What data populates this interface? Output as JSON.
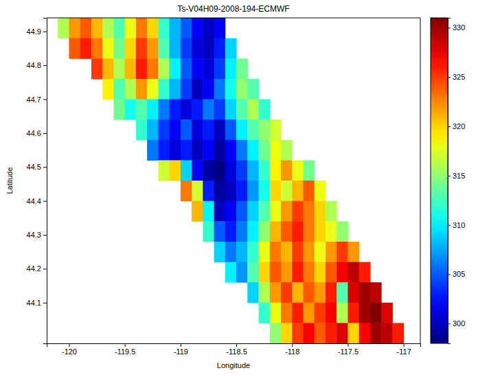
{
  "chart_data": {
    "type": "heatmap",
    "title": "Ts-V04H09-2008-194-ECMWF",
    "x_label": "Longitude",
    "y_label": "Latitude",
    "xlim": [
      -120.2,
      -116.85
    ],
    "ylim": [
      43.98,
      44.94
    ],
    "xticks": [
      -120,
      -119.5,
      -119,
      -118.5,
      -118,
      -117.5,
      -117
    ],
    "yticks": [
      44.1,
      44.2,
      44.3,
      44.4,
      44.5,
      44.6,
      44.7,
      44.8,
      44.9
    ],
    "x": [
      -120.15,
      -120.05,
      -119.95,
      -119.85,
      -119.75,
      -119.65,
      -119.55,
      -119.45,
      -119.35,
      -119.25,
      -119.15,
      -119.05,
      -118.95,
      -118.85,
      -118.75,
      -118.65,
      -118.55,
      -118.45,
      -118.35,
      -118.25,
      -118.15,
      -118.05,
      -117.95,
      -117.85,
      -117.75,
      -117.65,
      -117.55,
      -117.45,
      -117.35,
      -117.25,
      -117.15,
      -117.05,
      -116.95
    ],
    "y": [
      44.91,
      44.85,
      44.79,
      44.73,
      44.67,
      44.61,
      44.55,
      44.49,
      44.43,
      44.37,
      44.31,
      44.25,
      44.19,
      44.13,
      44.07,
      44.01
    ],
    "values": [
      [
        null,
        316,
        322,
        324,
        321,
        316,
        313,
        318,
        323,
        320,
        312,
        308,
        305,
        302,
        300,
        302,
        null,
        null,
        null,
        null,
        null,
        null,
        null,
        null,
        null,
        null,
        null,
        null,
        null,
        null,
        null,
        null,
        null
      ],
      [
        null,
        null,
        324,
        326,
        323,
        318,
        314,
        320,
        325,
        322,
        313,
        308,
        304,
        301,
        300,
        303,
        309,
        null,
        null,
        null,
        null,
        null,
        null,
        null,
        null,
        null,
        null,
        null,
        null,
        null,
        null,
        null,
        null
      ],
      [
        null,
        null,
        null,
        null,
        325,
        321,
        316,
        321,
        326,
        323,
        316,
        310,
        305,
        302,
        301,
        304,
        310,
        314,
        null,
        null,
        null,
        null,
        null,
        null,
        null,
        null,
        null,
        null,
        null,
        null,
        null,
        null,
        null
      ],
      [
        null,
        null,
        null,
        null,
        null,
        319,
        313,
        316,
        322,
        318,
        312,
        308,
        304,
        300,
        302,
        306,
        311,
        315,
        313,
        null,
        null,
        null,
        null,
        null,
        null,
        null,
        null,
        null,
        null,
        null,
        null,
        null,
        null
      ],
      [
        null,
        null,
        null,
        null,
        null,
        null,
        314,
        311,
        313,
        310,
        306,
        303,
        301,
        303,
        306,
        304,
        309,
        313,
        316,
        312,
        null,
        null,
        null,
        null,
        null,
        null,
        null,
        null,
        null,
        null,
        null,
        null,
        null
      ],
      [
        null,
        null,
        null,
        null,
        null,
        null,
        null,
        null,
        312,
        308,
        304,
        302,
        305,
        301,
        303,
        300,
        305,
        310,
        313,
        315,
        317,
        null,
        null,
        null,
        null,
        null,
        null,
        null,
        null,
        null,
        null,
        null,
        null
      ],
      [
        null,
        null,
        null,
        null,
        null,
        null,
        null,
        null,
        null,
        306,
        303,
        301,
        303,
        300,
        302,
        299,
        302,
        306,
        310,
        314,
        318,
        316,
        null,
        null,
        null,
        null,
        null,
        null,
        null,
        null,
        null,
        null,
        null
      ],
      [
        null,
        null,
        null,
        null,
        null,
        null,
        null,
        null,
        null,
        null,
        317,
        320,
        309,
        302,
        299,
        298,
        301,
        304,
        308,
        312,
        319,
        322,
        318,
        314,
        null,
        null,
        null,
        null,
        null,
        null,
        null,
        null,
        null
      ],
      [
        null,
        null,
        null,
        null,
        null,
        null,
        null,
        null,
        null,
        null,
        null,
        null,
        323,
        317,
        303,
        299,
        300,
        303,
        307,
        311,
        320,
        317,
        321,
        324,
        318,
        null,
        null,
        null,
        null,
        null,
        null,
        null,
        null
      ],
      [
        null,
        null,
        null,
        null,
        null,
        null,
        null,
        null,
        null,
        null,
        null,
        null,
        null,
        321,
        310,
        300,
        302,
        305,
        309,
        313,
        318,
        322,
        325,
        323,
        320,
        316,
        null,
        null,
        null,
        null,
        null,
        null,
        null
      ],
      [
        null,
        null,
        null,
        null,
        null,
        null,
        null,
        null,
        null,
        null,
        null,
        null,
        null,
        null,
        312,
        305,
        303,
        306,
        310,
        315,
        321,
        324,
        326,
        323,
        320,
        318,
        315,
        null,
        null,
        null,
        null,
        null,
        null
      ],
      [
        null,
        null,
        null,
        null,
        null,
        null,
        null,
        null,
        null,
        null,
        null,
        null,
        null,
        null,
        null,
        309,
        306,
        308,
        312,
        318,
        323,
        321,
        325,
        322,
        318,
        322,
        325,
        322,
        null,
        null,
        null,
        null,
        null
      ],
      [
        null,
        null,
        null,
        null,
        null,
        null,
        null,
        null,
        null,
        null,
        null,
        null,
        null,
        null,
        null,
        null,
        310,
        307,
        313,
        320,
        324,
        322,
        326,
        323,
        320,
        324,
        327,
        329,
        326,
        null,
        null,
        null,
        null
      ],
      [
        null,
        null,
        null,
        null,
        null,
        null,
        null,
        null,
        null,
        null,
        null,
        null,
        null,
        null,
        null,
        null,
        null,
        null,
        309,
        316,
        322,
        325,
        321,
        324,
        322,
        326,
        313,
        328,
        330,
        329,
        null,
        null,
        null
      ],
      [
        null,
        null,
        null,
        null,
        null,
        null,
        null,
        null,
        null,
        null,
        null,
        null,
        null,
        null,
        null,
        null,
        null,
        null,
        null,
        312,
        318,
        323,
        326,
        322,
        325,
        327,
        316,
        326,
        330,
        331,
        328,
        null,
        null
      ],
      [
        null,
        null,
        null,
        null,
        null,
        null,
        null,
        null,
        null,
        null,
        null,
        null,
        null,
        null,
        null,
        null,
        null,
        null,
        null,
        null,
        315,
        320,
        325,
        327,
        324,
        326,
        328,
        320,
        327,
        330,
        329,
        326,
        null
      ]
    ],
    "colorbar": {
      "lim": [
        298,
        331
      ],
      "ticks": [
        300,
        305,
        310,
        315,
        320,
        325,
        330
      ]
    }
  }
}
